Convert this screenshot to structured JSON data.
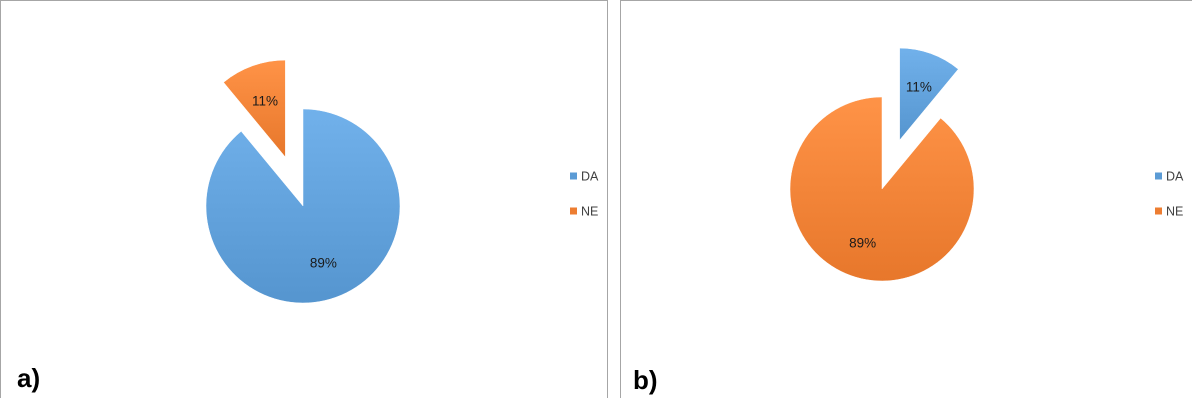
{
  "colors": {
    "DA": "#5b9bd5",
    "NE": "#ed7d31"
  },
  "chart_data": [
    {
      "panel_label": "a)",
      "type": "pie",
      "categories": [
        "DA",
        "NE"
      ],
      "values": [
        89,
        11
      ],
      "data_labels": [
        "89%",
        "11%"
      ],
      "exploded": "NE",
      "legend": {
        "entries": [
          "DA",
          "NE"
        ],
        "placement": "right"
      }
    },
    {
      "panel_label": "b)",
      "type": "pie",
      "categories": [
        "DA",
        "NE"
      ],
      "values": [
        11,
        89
      ],
      "data_labels": [
        "11%",
        "89%"
      ],
      "exploded": "DA",
      "legend": {
        "entries": [
          "DA",
          "NE"
        ],
        "placement": "right"
      }
    }
  ]
}
